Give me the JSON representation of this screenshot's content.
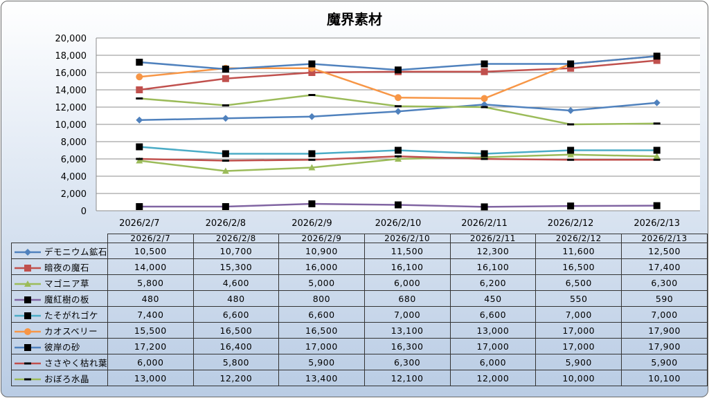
{
  "chart_data": {
    "type": "line",
    "title": "魔界素材",
    "categories": [
      "2026/2/7",
      "2026/2/8",
      "2026/2/9",
      "2026/2/10",
      "2026/2/11",
      "2026/2/12",
      "2026/2/13"
    ],
    "ylim": [
      0,
      20000
    ],
    "yticks": [
      "0",
      "2,000",
      "4,000",
      "6,000",
      "8,000",
      "10,000",
      "12,000",
      "14,000",
      "16,000",
      "18,000",
      "20,000"
    ],
    "grid": true,
    "legend": "data-table",
    "series": [
      {
        "name": "デモニウム鉱石",
        "color": "#4f81bd",
        "marker": "diamond",
        "marker_color": "#4f81bd",
        "values": [
          10500,
          10700,
          10900,
          11500,
          12300,
          11600,
          12500
        ],
        "labels": [
          "10,500",
          "10,700",
          "10,900",
          "11,500",
          "12,300",
          "11,600",
          "12,500"
        ]
      },
      {
        "name": "暗夜の魔石",
        "color": "#c0504d",
        "marker": "square",
        "marker_color": "#c0504d",
        "values": [
          14000,
          15300,
          16000,
          16100,
          16100,
          16500,
          17400
        ],
        "labels": [
          "14,000",
          "15,300",
          "16,000",
          "16,100",
          "16,100",
          "16,500",
          "17,400"
        ]
      },
      {
        "name": "マゴニア草",
        "color": "#9bbb59",
        "marker": "triangle",
        "marker_color": "#9bbb59",
        "values": [
          5800,
          4600,
          5000,
          6000,
          6200,
          6500,
          6300
        ],
        "labels": [
          "5,800",
          "4,600",
          "5,000",
          "6,000",
          "6,200",
          "6,500",
          "6,300"
        ]
      },
      {
        "name": "魔紅樹の板",
        "color": "#8064a2",
        "marker": "square",
        "marker_color": "#000000",
        "values": [
          480,
          480,
          800,
          680,
          450,
          550,
          590
        ],
        "labels": [
          "480",
          "480",
          "800",
          "680",
          "450",
          "550",
          "590"
        ]
      },
      {
        "name": "たそがれゴケ",
        "color": "#4bacc6",
        "marker": "square",
        "marker_color": "#000000",
        "values": [
          7400,
          6600,
          6600,
          7000,
          6600,
          7000,
          7000
        ],
        "labels": [
          "7,400",
          "6,600",
          "6,600",
          "7,000",
          "6,600",
          "7,000",
          "7,000"
        ]
      },
      {
        "name": "カオスベリー",
        "color": "#f79646",
        "marker": "circle",
        "marker_color": "#f79646",
        "values": [
          15500,
          16500,
          16500,
          13100,
          13000,
          17000,
          17900
        ],
        "labels": [
          "15,500",
          "16,500",
          "16,500",
          "13,100",
          "13,000",
          "17,000",
          "17,900"
        ]
      },
      {
        "name": "彼岸の砂",
        "color": "#4f81bd",
        "marker": "square",
        "marker_color": "#000000",
        "values": [
          17200,
          16400,
          17000,
          16300,
          17000,
          17000,
          17900
        ],
        "labels": [
          "17,200",
          "16,400",
          "17,000",
          "16,300",
          "17,000",
          "17,000",
          "17,900"
        ]
      },
      {
        "name": "ささやく枯れ葉",
        "color": "#c0504d",
        "marker": "dash",
        "marker_color": "#000000",
        "values": [
          6000,
          5800,
          5900,
          6300,
          6000,
          5900,
          5900
        ],
        "labels": [
          "6,000",
          "5,800",
          "5,900",
          "6,300",
          "6,000",
          "5,900",
          "5,900"
        ]
      },
      {
        "name": "おぼろ水晶",
        "color": "#9bbb59",
        "marker": "dash",
        "marker_color": "#000000",
        "values": [
          13000,
          12200,
          13400,
          12100,
          12000,
          10000,
          10100
        ],
        "labels": [
          "13,000",
          "12,200",
          "13,400",
          "12,100",
          "12,000",
          "10,000",
          "10,100"
        ]
      }
    ]
  }
}
